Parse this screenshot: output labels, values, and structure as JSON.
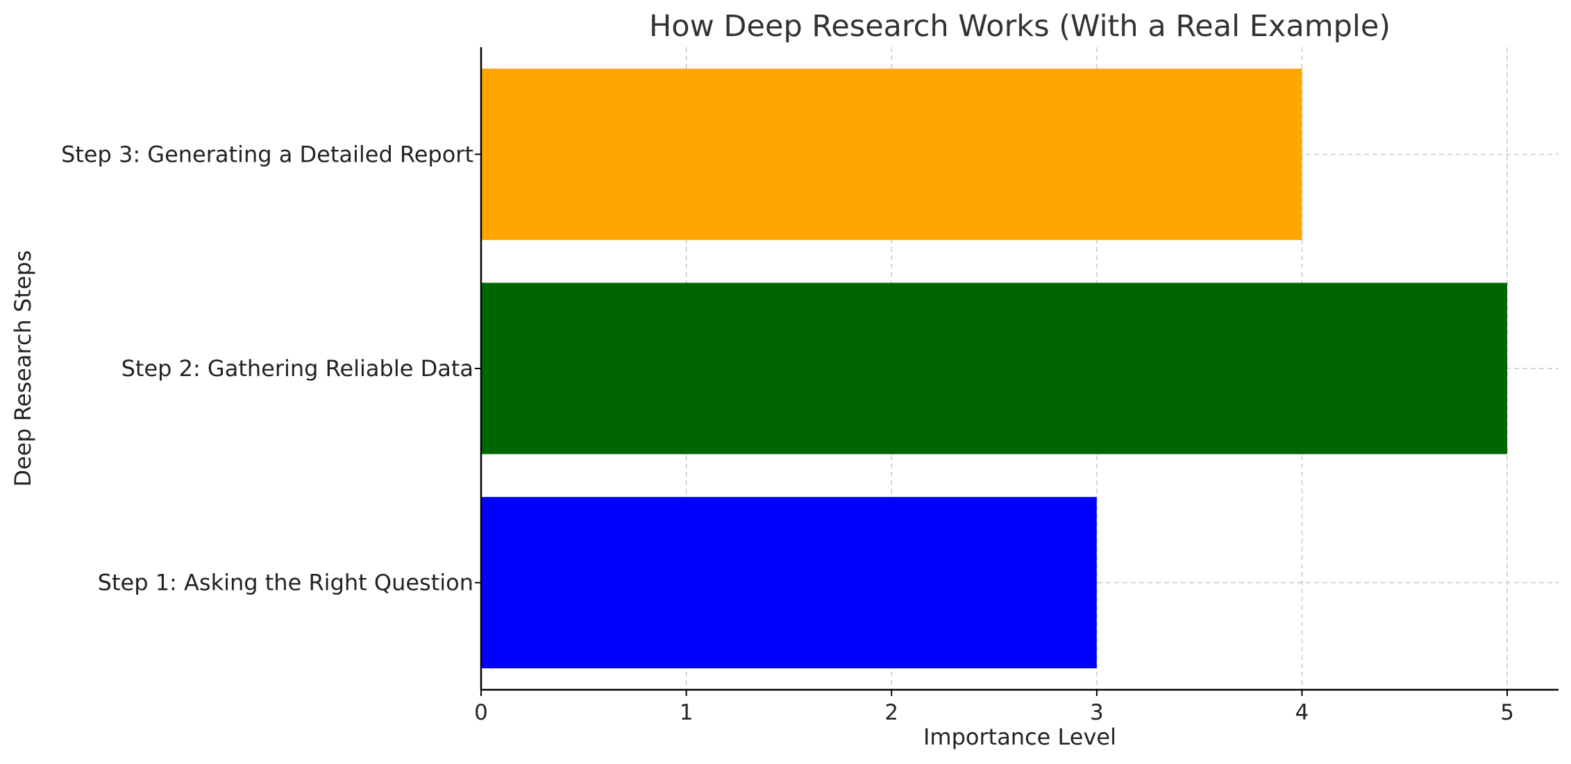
{
  "chart_data": {
    "type": "bar",
    "orientation": "horizontal",
    "title": "How Deep Research Works (With a Real Example)",
    "xlabel": "Importance Level",
    "ylabel": "Deep Research Steps",
    "categories": [
      "Step 1: Asking the Right Question",
      "Step 2: Gathering Reliable Data",
      "Step 3: Generating a Detailed Report"
    ],
    "values": [
      3,
      5,
      4
    ],
    "colors": [
      "#0000ff",
      "#006600",
      "#ffa500"
    ],
    "xlim": [
      0,
      5.25
    ],
    "xticks": [
      0,
      1,
      2,
      3,
      4,
      5
    ],
    "grid": true
  }
}
